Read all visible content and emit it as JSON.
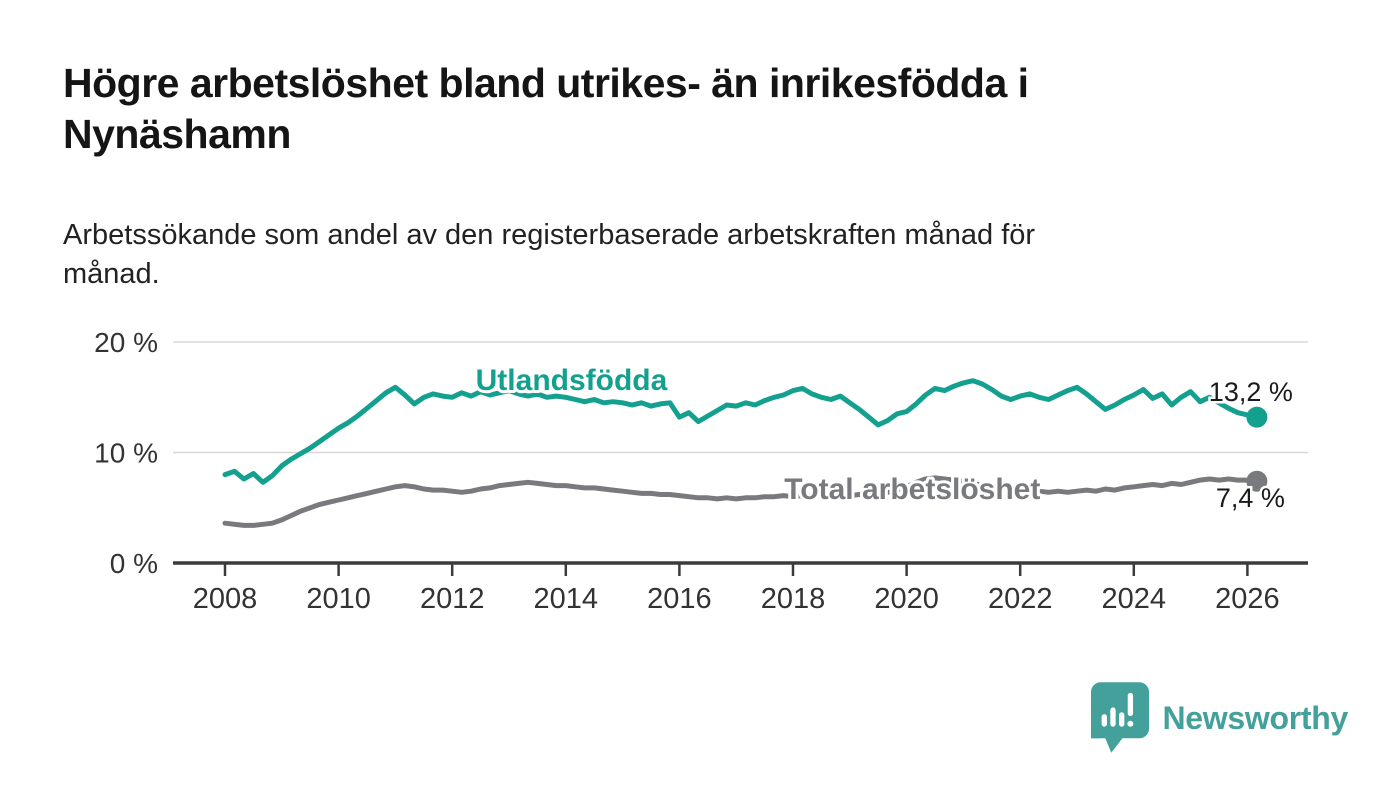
{
  "title": "Högre arbetslöshet bland utrikes- än inrikesfödda i\nNynäshamn",
  "subtitle": "Arbetssökande som andel av den registerbaserade arbetskraften månad för\nmånad.",
  "branding": {
    "name": "Newsworthy",
    "color": "#43a09a",
    "icon": "speech-bubble-with-bar-chart-and-exclamation"
  },
  "chart_data": {
    "type": "line",
    "title": "",
    "xlabel": "",
    "ylabel": "",
    "x_start": 2008.0,
    "points_per_year": 6,
    "xlim": [
      2007.1,
      2027.2
    ],
    "ylim": [
      0,
      20
    ],
    "grid": "horizontal",
    "legend_position": "inline-labels",
    "xticks": [
      2008,
      2010,
      2012,
      2014,
      2016,
      2018,
      2020,
      2022,
      2024,
      2026
    ],
    "yticks": [
      {
        "value": 0,
        "label": "0 %"
      },
      {
        "value": 10,
        "label": "10 %"
      },
      {
        "value": 20,
        "label": "20 %"
      }
    ],
    "series": [
      {
        "name": "Utlandsfödda",
        "color": "#14a08f",
        "end_value": 13.2,
        "end_label": "13,2 %",
        "label_pos": {
          "year": 2014.1,
          "pct": 16.55
        },
        "values": [
          8.0,
          8.3,
          7.6,
          8.1,
          7.3,
          7.9,
          8.8,
          9.4,
          9.9,
          10.4,
          11.0,
          11.6,
          12.2,
          12.7,
          13.3,
          14.0,
          14.7,
          15.4,
          15.9,
          15.2,
          14.4,
          15.0,
          15.3,
          15.1,
          15.0,
          15.4,
          15.1,
          15.5,
          15.2,
          15.4,
          15.6,
          15.3,
          15.1,
          15.3,
          15.0,
          15.1,
          15.0,
          14.8,
          14.6,
          14.8,
          14.5,
          14.6,
          14.5,
          14.3,
          14.5,
          14.2,
          14.4,
          14.5,
          13.2,
          13.6,
          12.8,
          13.3,
          13.8,
          14.3,
          14.2,
          14.5,
          14.3,
          14.7,
          15.0,
          15.2,
          15.6,
          15.8,
          15.3,
          15.0,
          14.8,
          15.1,
          14.5,
          13.9,
          13.2,
          12.5,
          12.9,
          13.5,
          13.7,
          14.4,
          15.2,
          15.8,
          15.6,
          16.0,
          16.3,
          16.5,
          16.2,
          15.7,
          15.1,
          14.8,
          15.1,
          15.3,
          15.0,
          14.8,
          15.2,
          15.6,
          15.9,
          15.3,
          14.6,
          13.9,
          14.3,
          14.8,
          15.2,
          15.7,
          14.9,
          15.3,
          14.3,
          15.0,
          15.5,
          14.6,
          15.0,
          14.5,
          14.0,
          13.6,
          13.4,
          13.2
        ]
      },
      {
        "name": "Total arbetslöshet",
        "color": "#797a7e",
        "end_value": 7.4,
        "end_label": "7,4 %",
        "label_pos": {
          "year": 2020.1,
          "pct": 6.7
        },
        "values": [
          3.6,
          3.5,
          3.4,
          3.4,
          3.5,
          3.6,
          3.9,
          4.3,
          4.7,
          5.0,
          5.3,
          5.5,
          5.7,
          5.9,
          6.1,
          6.3,
          6.5,
          6.7,
          6.9,
          7.0,
          6.9,
          6.7,
          6.6,
          6.6,
          6.5,
          6.4,
          6.5,
          6.7,
          6.8,
          7.0,
          7.1,
          7.2,
          7.3,
          7.2,
          7.1,
          7.0,
          7.0,
          6.9,
          6.8,
          6.8,
          6.7,
          6.6,
          6.5,
          6.4,
          6.3,
          6.3,
          6.2,
          6.2,
          6.1,
          6.0,
          5.9,
          5.9,
          5.8,
          5.9,
          5.8,
          5.9,
          5.9,
          6.0,
          6.0,
          6.1,
          6.0,
          6.1,
          6.1,
          6.2,
          6.1,
          6.2,
          6.1,
          6.2,
          6.3,
          6.3,
          6.4,
          6.6,
          6.9,
          7.3,
          7.6,
          7.7,
          7.6,
          7.5,
          7.4,
          7.2,
          7.0,
          6.9,
          6.8,
          6.7,
          6.6,
          6.5,
          6.5,
          6.4,
          6.5,
          6.4,
          6.5,
          6.6,
          6.5,
          6.7,
          6.6,
          6.8,
          6.9,
          7.0,
          7.1,
          7.0,
          7.2,
          7.1,
          7.3,
          7.5,
          7.6,
          7.5,
          7.6,
          7.5,
          7.5,
          7.4
        ]
      }
    ],
    "colors": {
      "grid": "#d8d8d8",
      "axis": "#3b3b3b",
      "tick_text": "#333333",
      "end_label_text": "#1b1b1b"
    }
  }
}
